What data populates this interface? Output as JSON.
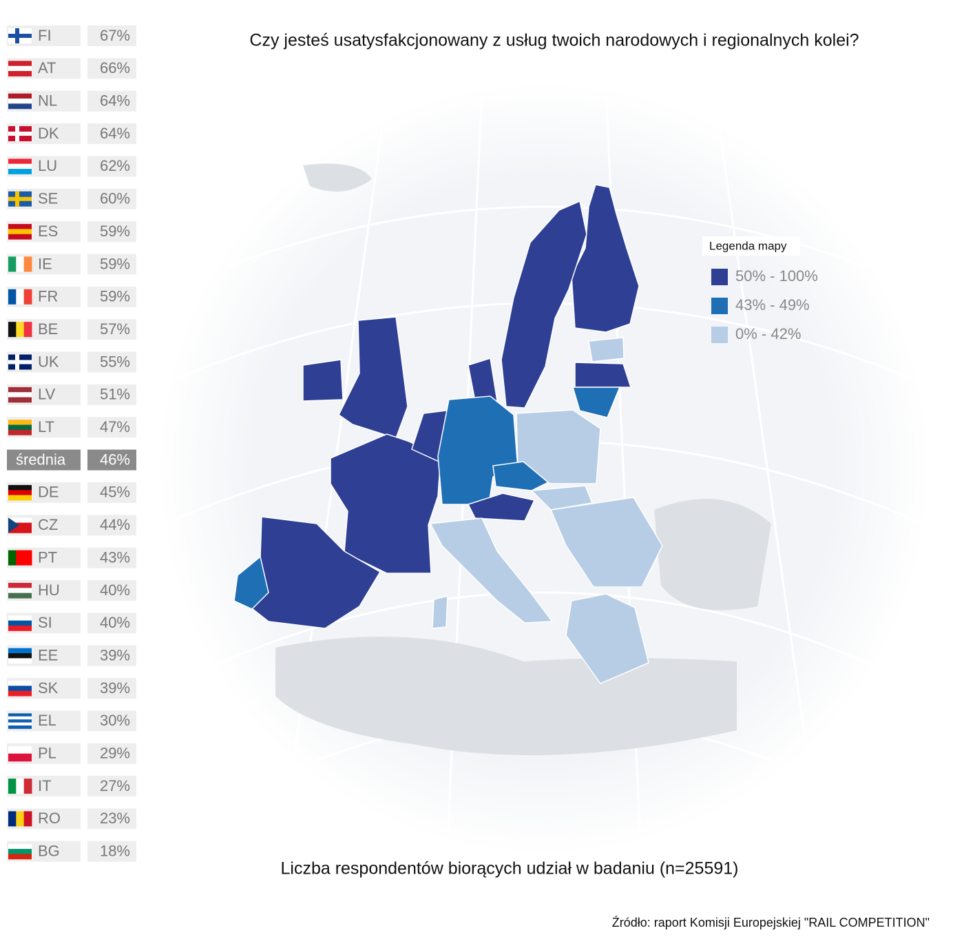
{
  "title": "Czy jesteś usatysfakcjonowany z usług twoich narodowych i regionalnych kolei?",
  "ranking": {
    "rows": [
      [
        "FI",
        "67%"
      ],
      [
        "AT",
        "66%"
      ],
      [
        "NL",
        "64%"
      ],
      [
        "DK",
        "64%"
      ],
      [
        "LU",
        "62%"
      ],
      [
        "SE",
        "60%"
      ],
      [
        "ES",
        "59%"
      ],
      [
        "IE",
        "59%"
      ],
      [
        "FR",
        "59%"
      ],
      [
        "BE",
        "57%"
      ],
      [
        "UK",
        "55%"
      ],
      [
        "LV",
        "51%"
      ],
      [
        "LT",
        "47%"
      ],
      [
        "średnia",
        "46%"
      ],
      [
        "DE",
        "45%"
      ],
      [
        "CZ",
        "44%"
      ],
      [
        "PT",
        "43%"
      ],
      [
        "HU",
        "40%"
      ],
      [
        "SI",
        "40%"
      ],
      [
        "EE",
        "39%"
      ],
      [
        "SK",
        "39%"
      ],
      [
        "EL",
        "30%"
      ],
      [
        "PL",
        "29%"
      ],
      [
        "IT",
        "27%"
      ],
      [
        "RO",
        "23%"
      ],
      [
        "BG",
        "18%"
      ]
    ]
  },
  "legend": {
    "title": "Legenda mapy",
    "items": [
      {
        "label": "50% - 100%",
        "color": "#2e3f94"
      },
      {
        "label": "43% - 49%",
        "color": "#1f6fb5"
      },
      {
        "label": "0% - 42%",
        "color": "#b7cde6"
      }
    ]
  },
  "footnote": "Liczba respondentów biorących udział w badaniu (n=25591)",
  "source": "Źródło: raport Komisji Europejskiej \"RAIL COMPETITION\""
}
